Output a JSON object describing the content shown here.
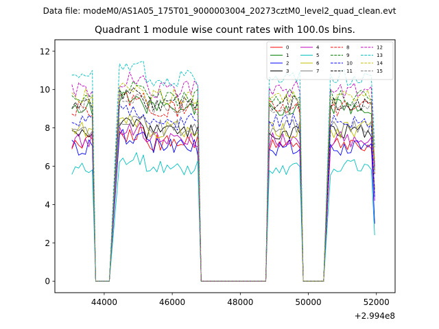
{
  "figure": {
    "suptitle": "Data file: modeM0/AS1A05_175T01_9000003004_20273cztM0_level2_quad_clean.evt"
  },
  "chart_data": {
    "type": "line",
    "title": "Quadrant 1 module wise count rates with 100.0s bins.",
    "xlabel": "",
    "ylabel": "",
    "x_offset_label": "+2.994e8",
    "xlim": [
      42550,
      52550
    ],
    "ylim": [
      -0.6,
      12.6
    ],
    "xticks": [
      44000,
      46000,
      48000,
      50000,
      52000
    ],
    "xtick_labels": [
      "44000",
      "46000",
      "48000",
      "50000",
      "52000"
    ],
    "yticks": [
      0,
      2,
      4,
      6,
      8,
      10,
      12
    ],
    "ytick_labels": [
      "0",
      "2",
      "4",
      "6",
      "8",
      "10",
      "12"
    ],
    "grid": false,
    "legend": {
      "location": "top-right",
      "columns": 4
    },
    "segments": [
      {
        "start": 43050,
        "n": 7,
        "on": true
      },
      {
        "start": 43750,
        "n": 1,
        "on": false
      },
      {
        "start": 43850,
        "n": 3,
        "on": false
      },
      {
        "start": 44150,
        "n": 1,
        "on": false
      },
      {
        "start": 44450,
        "n": 24,
        "on": true
      },
      {
        "start": 46850,
        "n": 1,
        "on": false
      },
      {
        "start": 46950,
        "n": 19,
        "on": false
      },
      {
        "start": 48850,
        "n": 10,
        "on": true
      },
      {
        "start": 49850,
        "n": 1,
        "on": false
      },
      {
        "start": 49950,
        "n": 6,
        "on": false
      },
      {
        "start": 50650,
        "n": 14,
        "on": true
      }
    ],
    "series": [
      {
        "name": "0",
        "color": "#ff0000",
        "dash": "solid",
        "mean": 7.2,
        "last": 4.5
      },
      {
        "name": "1",
        "color": "#008000",
        "dash": "solid",
        "mean": 9.1,
        "last": 5.8
      },
      {
        "name": "2",
        "color": "#0000ff",
        "dash": "solid",
        "mean": 7.0,
        "last": 3.0
      },
      {
        "name": "3",
        "color": "#000000",
        "dash": "solid",
        "mean": 7.8,
        "last": 4.8
      },
      {
        "name": "4",
        "color": "#bf00bf",
        "dash": "solid",
        "mean": 7.4,
        "last": 4.2
      },
      {
        "name": "5",
        "color": "#00bfbf",
        "dash": "solid",
        "mean": 5.9,
        "last": 2.4
      },
      {
        "name": "6",
        "color": "#bfbf00",
        "dash": "solid",
        "mean": 7.9,
        "last": 4.6
      },
      {
        "name": "7",
        "color": "#808080",
        "dash": "solid",
        "mean": 8.0,
        "last": 4.4
      },
      {
        "name": "8",
        "color": "#ff0000",
        "dash": "dashed",
        "mean": 9.0,
        "last": 5.6
      },
      {
        "name": "9",
        "color": "#008000",
        "dash": "dashed",
        "mean": 9.6,
        "last": 6.0
      },
      {
        "name": "10",
        "color": "#0000ff",
        "dash": "dashed",
        "mean": 8.3,
        "last": 4.4
      },
      {
        "name": "11",
        "color": "#000000",
        "dash": "dashed",
        "mean": 9.3,
        "last": 5.6
      },
      {
        "name": "12",
        "color": "#bf00bf",
        "dash": "dashed",
        "mean": 10.0,
        "last": 6.0
      },
      {
        "name": "13",
        "color": "#00bfbf",
        "dash": "dashed",
        "mean": 10.6,
        "last": 7.0
      },
      {
        "name": "14",
        "color": "#bfbf00",
        "dash": "dashed",
        "mean": 9.6,
        "last": 6.4
      },
      {
        "name": "15",
        "color": "#808080",
        "dash": "dashed",
        "mean": 9.1,
        "last": 5.6
      }
    ]
  }
}
